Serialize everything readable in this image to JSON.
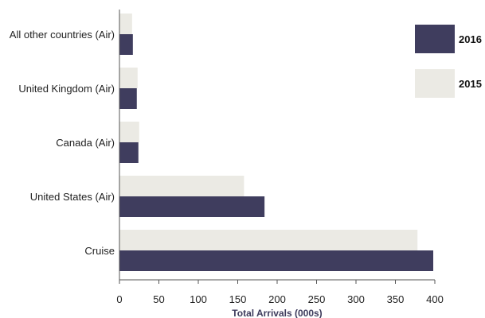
{
  "chart_data": {
    "type": "bar",
    "orientation": "horizontal",
    "categories": [
      "All other countries (Air)",
      "United Kingdom (Air)",
      "Canada (Air)",
      "United States (Air)",
      "Cruise"
    ],
    "series": [
      {
        "name": "2016",
        "color": "#3f3d5e",
        "values": [
          17,
          22,
          24,
          184,
          398
        ]
      },
      {
        "name": "2015",
        "color": "#ebeae4",
        "values": [
          16,
          23,
          25,
          158,
          378
        ]
      }
    ],
    "xlabel": "Total Arrivals (000s)",
    "ylabel": "",
    "xlim": [
      0,
      400
    ],
    "xticks": [
      "0",
      "50",
      "100",
      "150",
      "200",
      "250",
      "300",
      "350",
      "400"
    ],
    "grid": false,
    "legend_position": "right"
  }
}
